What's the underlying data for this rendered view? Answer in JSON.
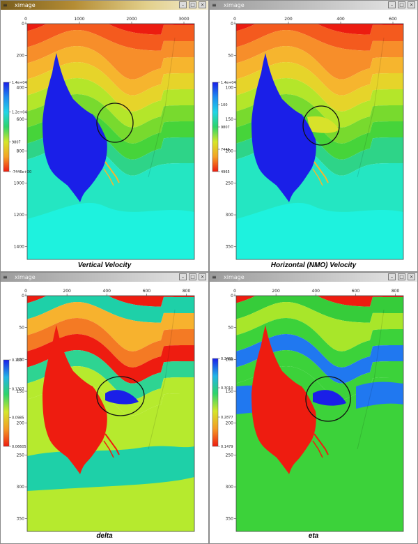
{
  "windows": [
    {
      "title": "ximage",
      "active": true,
      "caption": "Vertical Velocity",
      "x_ticks": [
        "0",
        "1000",
        "2000",
        "3000"
      ],
      "y_ticks": [
        "0",
        "200",
        "400",
        "600",
        "800",
        "1000",
        "1200",
        "1400"
      ],
      "scale": [
        "1.4e+04",
        "1.2e+04",
        "9807",
        "-7446e+00"
      ]
    },
    {
      "title": "ximage",
      "active": false,
      "caption": "Horizontal (NMO) Velocity",
      "x_ticks": [
        "0",
        "200",
        "400",
        "600"
      ],
      "y_ticks": [
        "0",
        "50",
        "100",
        "150",
        "200",
        "250",
        "300",
        "350"
      ],
      "scale": [
        "1.4e+04",
        "100",
        "9807",
        "7446",
        "4965"
      ]
    },
    {
      "title": "ximage",
      "active": false,
      "caption": "delta",
      "x_ticks": [
        "0",
        "200",
        "400",
        "600",
        "800"
      ],
      "y_ticks": [
        "0",
        "50",
        "100",
        "150",
        "200",
        "250",
        "300",
        "350"
      ],
      "scale": [
        "0.163",
        "0.1307",
        "0.0985",
        "0.06605"
      ]
    },
    {
      "title": "ximage",
      "active": false,
      "caption": "eta",
      "x_ticks": [
        "0",
        "200",
        "400",
        "600",
        "800"
      ],
      "y_ticks": [
        "0",
        "50",
        "100",
        "150",
        "200",
        "250",
        "300",
        "350"
      ],
      "scale": [
        "0.3481",
        "0.3010",
        "0.2877",
        "0.1479"
      ]
    }
  ],
  "colors": {
    "velocity_layers": [
      "#ec1c10",
      "#f45a1e",
      "#f78e2a",
      "#f6b52e",
      "#e6d42a",
      "#b4e62a",
      "#78da2e",
      "#46d43a",
      "#2ed488",
      "#24e6c2",
      "#1ef2de"
    ],
    "salt_velocity": "#1a1fe8",
    "delta_layers": [
      "#ee1c10",
      "#1ed0a8",
      "#f7b22e",
      "#f47a24",
      "#ee1c10",
      "#2ed492",
      "#b6ea2e"
    ],
    "delta_salt": "#ee1c10",
    "delta_anomaly": "#1a1fe8",
    "eta_layers": [
      "#ee1c10",
      "#36cc3a",
      "#a8e62a",
      "#3cd23a",
      "#2078f0",
      "#3cd23a"
    ],
    "eta_salt": "#ee1c10",
    "eta_anomaly": "#1a1fe8",
    "circle": "#111111"
  }
}
